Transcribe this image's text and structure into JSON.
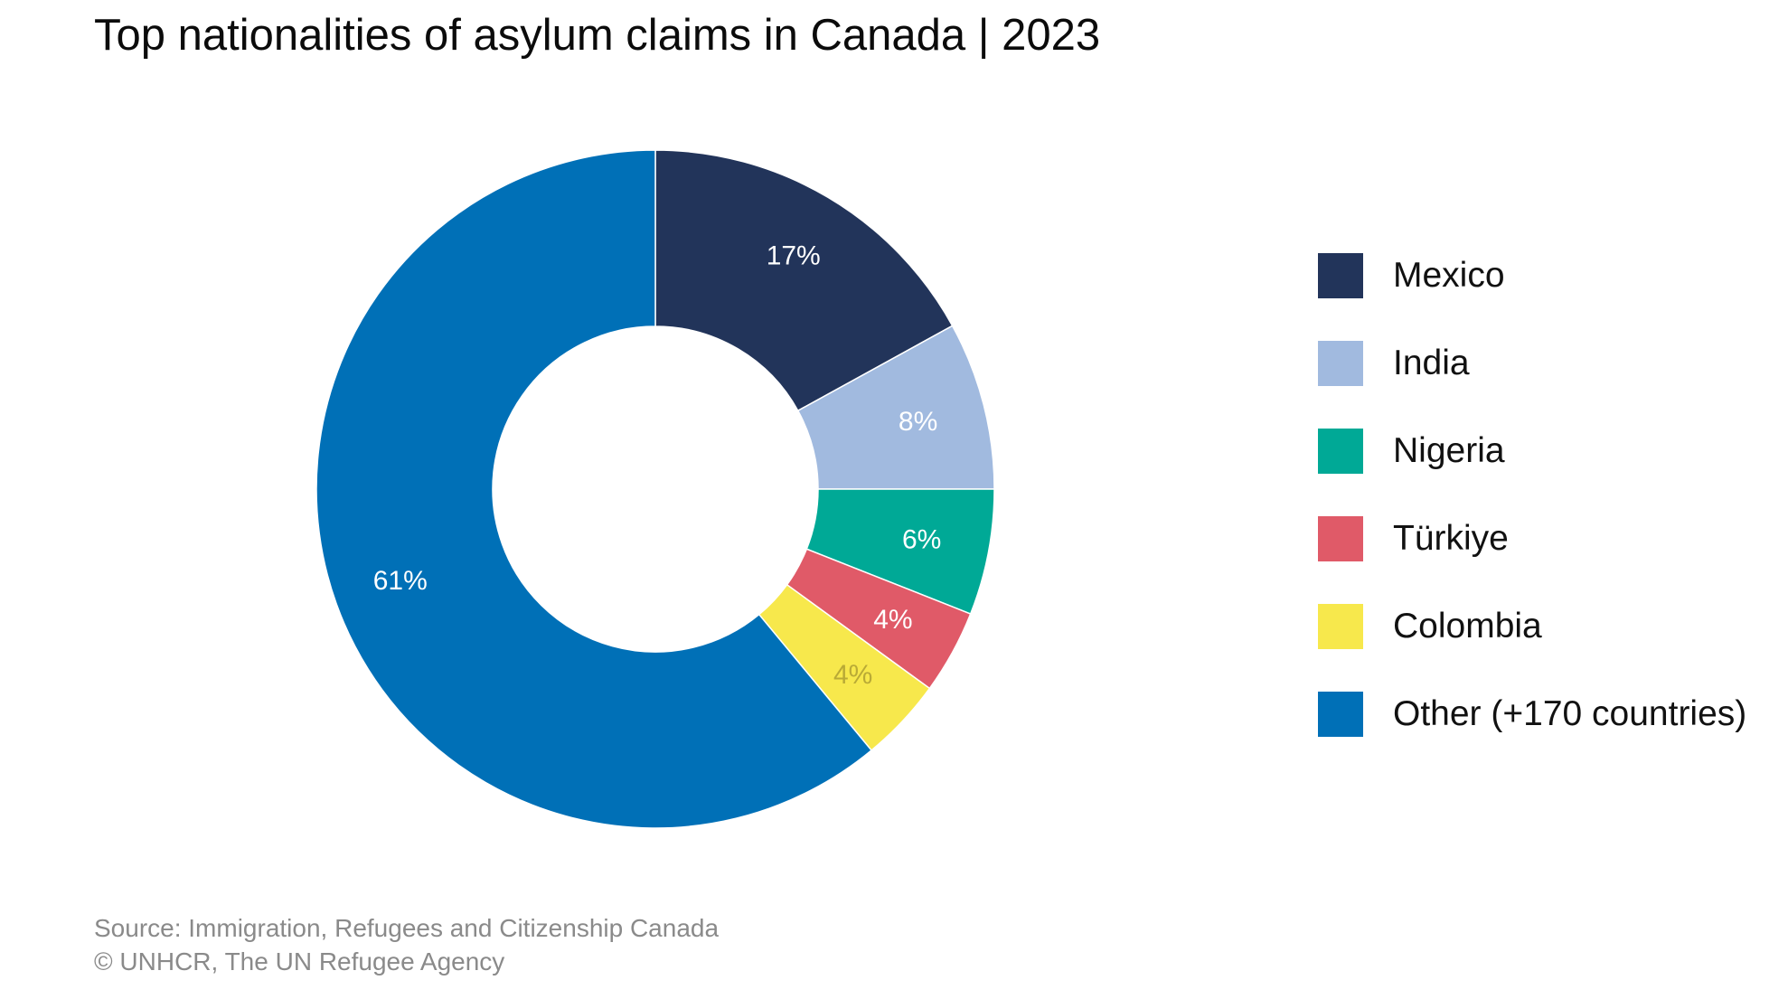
{
  "chart_data": {
    "type": "pie",
    "variant": "donut",
    "title": "Top nationalities of asylum claims in Canada | 2023",
    "categories": [
      "Mexico",
      "India",
      "Nigeria",
      "Türkiye",
      "Colombia",
      "Other (+170 countries)"
    ],
    "values": [
      17,
      8,
      6,
      4,
      4,
      61
    ],
    "data_labels": [
      "17%",
      "8%",
      "6%",
      "4%",
      "4%",
      "61%"
    ],
    "colors": [
      "#22345a",
      "#a1badf",
      "#00a996",
      "#e05a68",
      "#f7e84c",
      "#0070b7"
    ],
    "label_colors": [
      "#ffffff",
      "#ffffff",
      "#ffffff",
      "#ffffff",
      "#b9aa36",
      "#ffffff"
    ],
    "legend": "right"
  },
  "source": {
    "line1": "Source: Immigration, Refugees and Citizenship Canada",
    "line2": "© UNHCR, The UN Refugee Agency"
  }
}
